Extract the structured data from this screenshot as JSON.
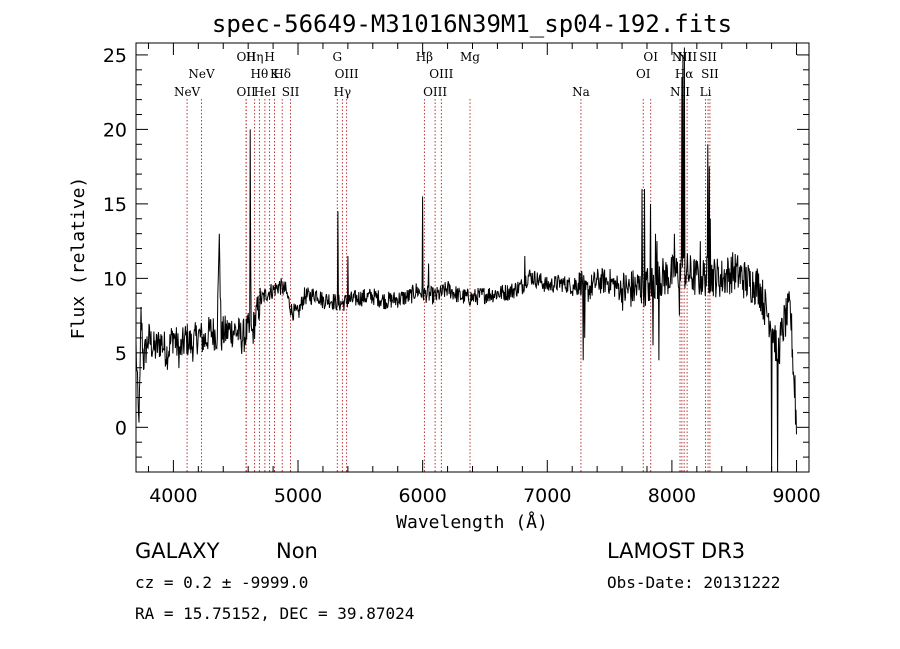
{
  "chart_data": {
    "type": "line",
    "title": "spec-56649-M31016N39M1_sp04-192.fits",
    "xlabel": "Wavelength (Å)",
    "ylabel": "Flux (relative)",
    "xlim": [
      3700,
      9100
    ],
    "ylim": [
      -3,
      25.8
    ],
    "xticks": [
      4000,
      5000,
      6000,
      7000,
      8000,
      9000
    ],
    "yticks": [
      0,
      5,
      10,
      15,
      20,
      25
    ],
    "colors": {
      "spectrum": "#000000",
      "lines": "#b22222",
      "axes": "#000000"
    },
    "spectrum_anchors": [
      [
        3700,
        5.5
      ],
      [
        3720,
        0.5
      ],
      [
        3730,
        2.0
      ],
      [
        3740,
        7.5
      ],
      [
        3760,
        4.5
      ],
      [
        3800,
        6.0
      ],
      [
        3850,
        5.2
      ],
      [
        3900,
        5.8
      ],
      [
        3950,
        5.0
      ],
      [
        4000,
        6.2
      ],
      [
        4050,
        5.0
      ],
      [
        4100,
        6.0
      ],
      [
        4150,
        5.5
      ],
      [
        4200,
        6.2
      ],
      [
        4250,
        5.8
      ],
      [
        4300,
        6.5
      ],
      [
        4350,
        6.2
      ],
      [
        4370,
        13.0
      ],
      [
        4380,
        6.0
      ],
      [
        4400,
        6.3
      ],
      [
        4450,
        6.5
      ],
      [
        4500,
        6.5
      ],
      [
        4550,
        6.0
      ],
      [
        4600,
        6.5
      ],
      [
        4630,
        6.2
      ],
      [
        4650,
        7.0
      ],
      [
        4700,
        8.5
      ],
      [
        4750,
        9.0
      ],
      [
        4800,
        9.2
      ],
      [
        4850,
        9.5
      ],
      [
        4900,
        9.2
      ],
      [
        4950,
        7.8
      ],
      [
        5000,
        7.6
      ],
      [
        5050,
        8.8
      ],
      [
        5100,
        8.8
      ],
      [
        5150,
        9.0
      ],
      [
        5200,
        8.5
      ],
      [
        5250,
        8.6
      ],
      [
        5300,
        8.4
      ],
      [
        5350,
        8.3
      ],
      [
        5400,
        8.5
      ],
      [
        5500,
        8.7
      ],
      [
        5600,
        8.8
      ],
      [
        5700,
        8.5
      ],
      [
        5800,
        8.6
      ],
      [
        5900,
        8.8
      ],
      [
        5950,
        9.2
      ],
      [
        6000,
        9.0
      ],
      [
        6100,
        8.8
      ],
      [
        6150,
        9.0
      ],
      [
        6200,
        9.3
      ],
      [
        6300,
        8.8
      ],
      [
        6400,
        8.7
      ],
      [
        6500,
        8.9
      ],
      [
        6600,
        9.0
      ],
      [
        6700,
        9.1
      ],
      [
        6800,
        9.5
      ],
      [
        6850,
        10.2
      ],
      [
        6900,
        10.0
      ],
      [
        6950,
        9.8
      ],
      [
        7000,
        9.5
      ],
      [
        7100,
        9.7
      ],
      [
        7200,
        9.5
      ],
      [
        7280,
        9.8
      ],
      [
        7300,
        9.0
      ],
      [
        7400,
        9.8
      ],
      [
        7500,
        9.8
      ],
      [
        7600,
        9.2
      ],
      [
        7700,
        9.3
      ],
      [
        7800,
        9.5
      ],
      [
        7900,
        10.0
      ],
      [
        8000,
        10.2
      ],
      [
        8100,
        10.5
      ],
      [
        8200,
        10.0
      ],
      [
        8300,
        10.2
      ],
      [
        8400,
        10.0
      ],
      [
        8500,
        10.5
      ],
      [
        8600,
        9.8
      ],
      [
        8700,
        9.5
      ],
      [
        8750,
        8.0
      ],
      [
        8800,
        7.0
      ],
      [
        8850,
        5.0
      ],
      [
        8900,
        7.0
      ],
      [
        8950,
        8.0
      ],
      [
        9000,
        0.0
      ]
    ],
    "spectrum_spikes": [
      [
        4370,
        13.0
      ],
      [
        4380,
        8.5
      ],
      [
        4618,
        20.0
      ],
      [
        4622,
        11.0
      ],
      [
        5320,
        14.5
      ],
      [
        5400,
        11.5
      ],
      [
        6000,
        15.5
      ],
      [
        6050,
        11.0
      ],
      [
        6820,
        11.5
      ],
      [
        7290,
        4.5
      ],
      [
        7300,
        6.0
      ],
      [
        7760,
        16.0
      ],
      [
        7780,
        16.0
      ],
      [
        7820,
        8.5
      ],
      [
        7830,
        15.0
      ],
      [
        7850,
        5.5
      ],
      [
        7870,
        13.0
      ],
      [
        7880,
        12.5
      ],
      [
        7895,
        4.5
      ],
      [
        7900,
        10.8
      ],
      [
        8020,
        13.0
      ],
      [
        8060,
        7.5
      ],
      [
        8080,
        23.5
      ],
      [
        8090,
        25.0
      ],
      [
        8100,
        25.5
      ],
      [
        8130,
        10.5
      ],
      [
        8200,
        10.2
      ],
      [
        8230,
        12.5
      ],
      [
        8290,
        19.0
      ],
      [
        8300,
        17.5
      ],
      [
        8310,
        14.0
      ],
      [
        8660,
        9.5
      ],
      [
        8800,
        -3.0
      ],
      [
        8840,
        4.5
      ],
      [
        8850,
        -3.0
      ],
      [
        8950,
        8.5
      ],
      [
        8990,
        3.5
      ]
    ],
    "noise_sigma_blue": 1.2,
    "noise_sigma_mid": 0.6,
    "noise_sigma_red": 1.4,
    "spectral_lines": [
      {
        "wave": 4110,
        "label": "NeV",
        "row": 3
      },
      {
        "wave": 4226,
        "label": "NeV",
        "row": 2
      },
      {
        "wave": 4584,
        "label": "OII",
        "row": 3
      },
      {
        "wave": 4584,
        "label": "OII",
        "row": 1
      },
      {
        "wave": 4652,
        "label": "Hη",
        "row": 1
      },
      {
        "wave": 4690,
        "label": "Hθ",
        "row": 2
      },
      {
        "wave": 4734,
        "label": "HeI",
        "row": 3
      },
      {
        "wave": 4772,
        "label": "H",
        "row": 1
      },
      {
        "wave": 4811,
        "label": "K",
        "row": 2
      },
      {
        "wave": 4873,
        "label": "Hδ",
        "row": 2
      },
      {
        "wave": 4940,
        "label": "SII",
        "row": 3
      },
      {
        "wave": 5315,
        "label": "G",
        "row": 1
      },
      {
        "wave": 5356,
        "label": "Hγ",
        "row": 3
      },
      {
        "wave": 5390,
        "label": "OIII",
        "row": 2
      },
      {
        "wave": 6014,
        "label": "Hβ",
        "row": 1
      },
      {
        "wave": 6100,
        "label": "OIII",
        "row": 3
      },
      {
        "wave": 6150,
        "label": "OIII",
        "row": 2
      },
      {
        "wave": 6380,
        "label": "Mg",
        "row": 1
      },
      {
        "wave": 7270,
        "label": "Na",
        "row": 3
      },
      {
        "wave": 7770,
        "label": "OI",
        "row": 2
      },
      {
        "wave": 7830,
        "label": "OI",
        "row": 1
      },
      {
        "wave": 8065,
        "label": "NII",
        "row": 3
      },
      {
        "wave": 8080,
        "label": "NII",
        "row": 1
      },
      {
        "wave": 8098,
        "label": "Hα",
        "row": 2
      },
      {
        "wave": 8122,
        "label": "NII",
        "row": 1
      },
      {
        "wave": 8270,
        "label": "Li",
        "row": 3
      },
      {
        "wave": 8290,
        "label": "SII",
        "row": 1
      },
      {
        "wave": 8305,
        "label": "SII",
        "row": 2
      }
    ]
  },
  "footer": {
    "class_label": "GALAXY",
    "subclass_label": "Non",
    "survey_label": "LAMOST DR3",
    "redshift_text": "cz = 0.2 ± -9999.0",
    "obs_date_text": "Obs-Date: 20131222",
    "coords_text": "RA =  15.75152, DEC =  39.87024"
  }
}
